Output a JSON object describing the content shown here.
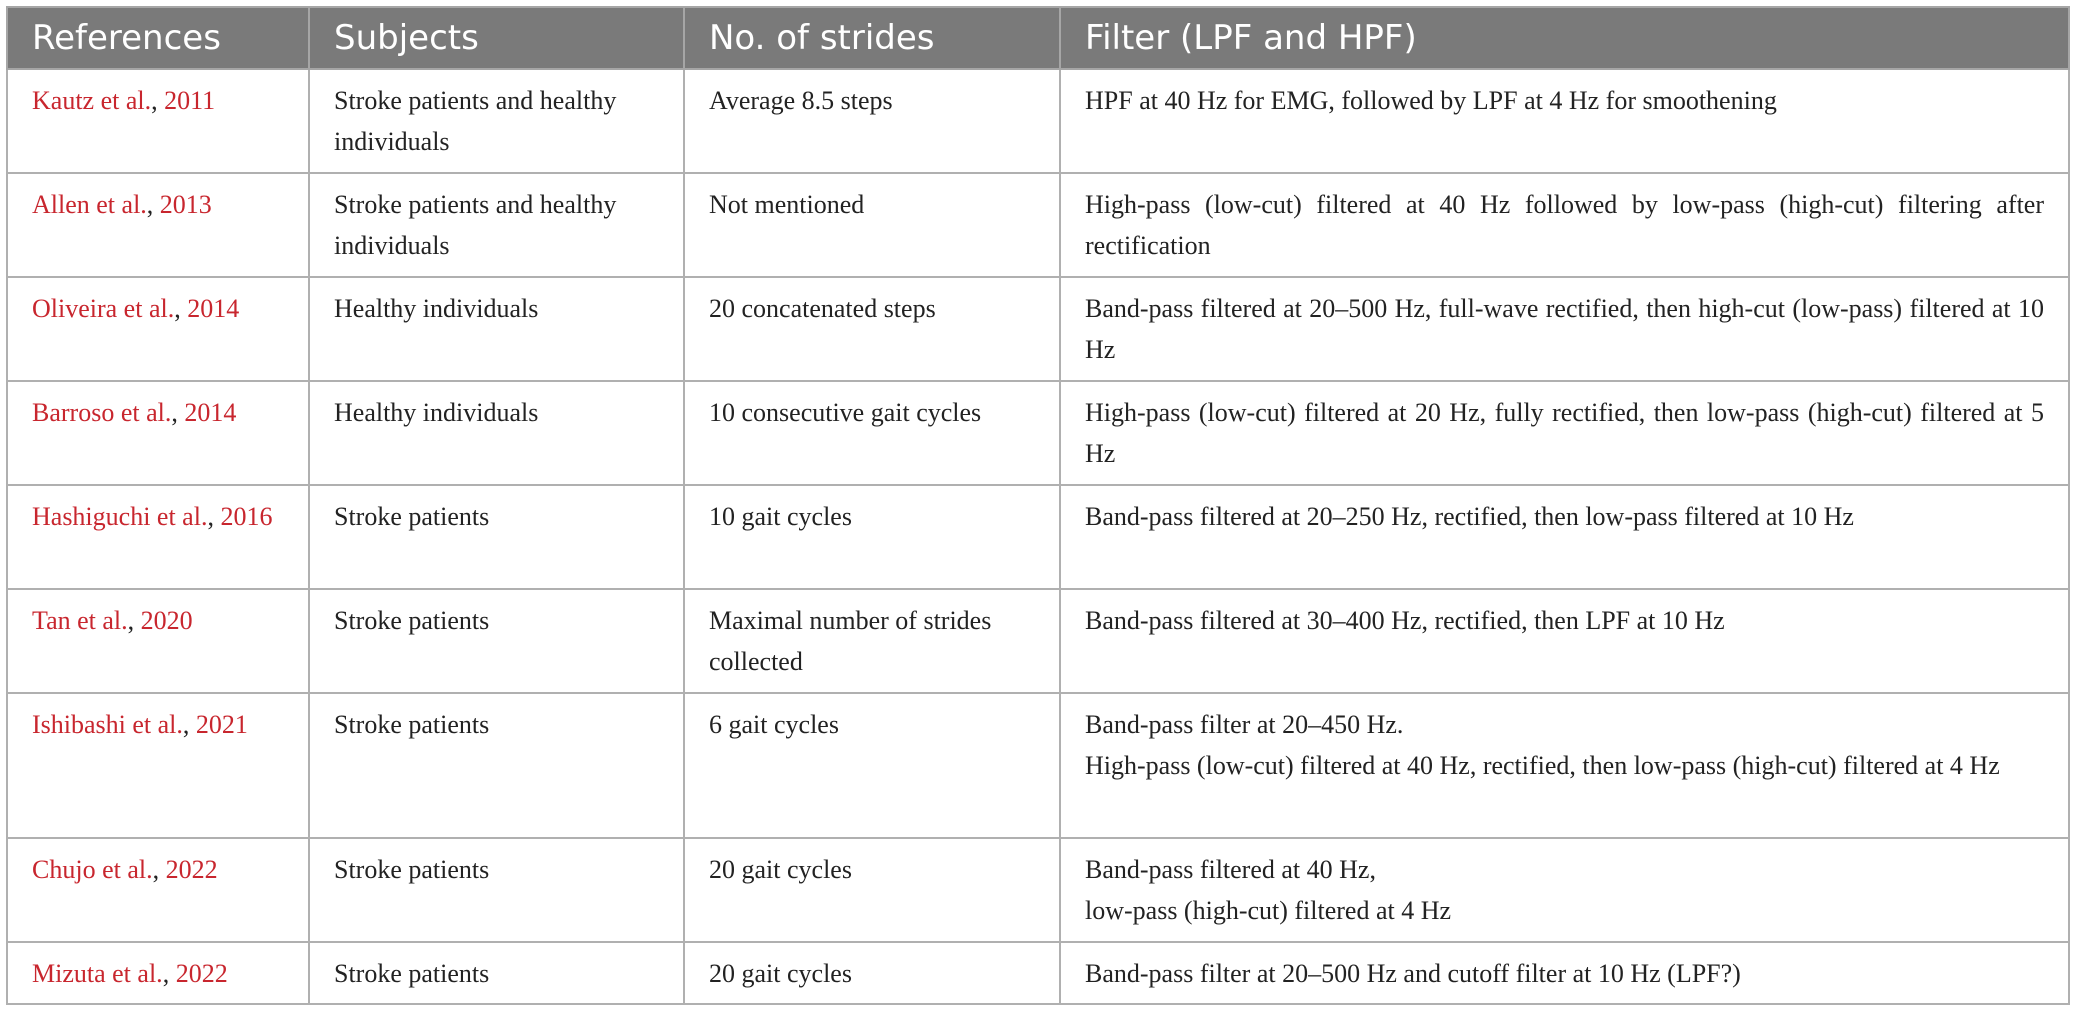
{
  "table": {
    "headers": [
      "References",
      "Subjects",
      "No. of strides",
      "Filter (LPF and HPF)"
    ],
    "rows": [
      {
        "ref_name": "Kautz et al.",
        "ref_year": "2011",
        "subjects": "Stroke patients and healthy individuals",
        "strides": "Average 8.5 steps",
        "filter": [
          "HPF at 40 Hz for EMG, followed by LPF at 4 Hz for smoothening"
        ]
      },
      {
        "ref_name": "Allen et al.",
        "ref_year": "2013",
        "subjects": "Stroke patients and healthy individuals",
        "strides": "Not mentioned",
        "filter": [
          "High-pass (low-cut) filtered at 40 Hz followed by low-pass (high-cut) filtering after rectification"
        ]
      },
      {
        "ref_name": "Oliveira et al.",
        "ref_year": "2014",
        "subjects": "Healthy individuals",
        "strides": "20 concatenated steps",
        "filter": [
          "Band-pass filtered at 20–500 Hz, full-wave rectified, then high-cut (low-pass) filtered at 10 Hz"
        ]
      },
      {
        "ref_name": "Barroso et al.",
        "ref_year": "2014",
        "subjects": "Healthy individuals",
        "strides": "10 consecutive gait cycles",
        "filter": [
          "High-pass (low-cut) filtered at 20 Hz, fully rectified, then low-pass (high-cut) filtered at 5 Hz"
        ]
      },
      {
        "ref_name": "Hashiguchi et al.",
        "ref_year": "2016",
        "subjects": "Stroke patients",
        "strides": "10 gait cycles",
        "filter": [
          "Band-pass filtered at 20–250 Hz, rectified, then low-pass filtered at 10 Hz"
        ]
      },
      {
        "ref_name": "Tan et al.",
        "ref_year": "2020",
        "subjects": "Stroke patients",
        "strides": "Maximal number of strides collected",
        "filter": [
          "Band-pass filtered at 30–400 Hz, rectified, then LPF at 10 Hz"
        ]
      },
      {
        "ref_name": "Ishibashi et al.",
        "ref_year": "2021",
        "subjects": "Stroke patients",
        "strides": "6 gait cycles",
        "filter": [
          "Band-pass filter at 20–450 Hz.",
          "High-pass (low-cut) filtered at 40 Hz, rectified, then low-pass (high-cut) filtered at 4 Hz"
        ]
      },
      {
        "ref_name": "Chujo et al.",
        "ref_year": "2022",
        "subjects": "Stroke patients",
        "strides": "20 gait cycles",
        "filter": [
          "Band-pass filtered at 40 Hz,",
          "low-pass (high-cut) filtered at 4 Hz"
        ]
      },
      {
        "ref_name": "Mizuta et al.",
        "ref_year": "2022",
        "subjects": "Stroke patients",
        "strides": "20 gait cycles",
        "filter": [
          "Band-pass filter at 20–500 Hz and cutoff filter at 10 Hz (LPF?)"
        ]
      }
    ],
    "ref_separator": ", ",
    "colors": {
      "header_bg": "#7a7a7a",
      "header_text": "#ffffff",
      "link": "#c8262e",
      "border": "#b0b0b0"
    }
  }
}
